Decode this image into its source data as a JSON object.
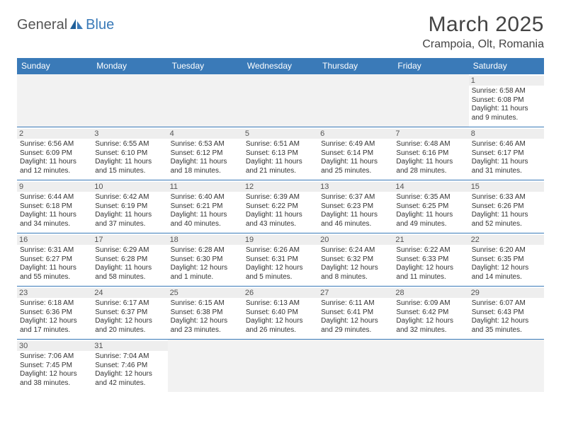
{
  "logo": {
    "text1": "General",
    "text2": "Blue"
  },
  "header": {
    "month": "March 2025",
    "location": "Crampoia, Olt, Romania"
  },
  "colors": {
    "header_bg": "#3a7ab8",
    "header_text": "#ffffff",
    "border": "#3a7ab8",
    "empty_bg": "#f2f2f2",
    "daynum_bg": "#eeeeee",
    "text": "#333333"
  },
  "day_headers": [
    "Sunday",
    "Monday",
    "Tuesday",
    "Wednesday",
    "Thursday",
    "Friday",
    "Saturday"
  ],
  "layout": {
    "first_day_index": 6,
    "days_in_month": 31
  },
  "days": {
    "1": {
      "sunrise": "6:58 AM",
      "sunset": "6:08 PM",
      "daylight": "11 hours and 9 minutes."
    },
    "2": {
      "sunrise": "6:56 AM",
      "sunset": "6:09 PM",
      "daylight": "11 hours and 12 minutes."
    },
    "3": {
      "sunrise": "6:55 AM",
      "sunset": "6:10 PM",
      "daylight": "11 hours and 15 minutes."
    },
    "4": {
      "sunrise": "6:53 AM",
      "sunset": "6:12 PM",
      "daylight": "11 hours and 18 minutes."
    },
    "5": {
      "sunrise": "6:51 AM",
      "sunset": "6:13 PM",
      "daylight": "11 hours and 21 minutes."
    },
    "6": {
      "sunrise": "6:49 AM",
      "sunset": "6:14 PM",
      "daylight": "11 hours and 25 minutes."
    },
    "7": {
      "sunrise": "6:48 AM",
      "sunset": "6:16 PM",
      "daylight": "11 hours and 28 minutes."
    },
    "8": {
      "sunrise": "6:46 AM",
      "sunset": "6:17 PM",
      "daylight": "11 hours and 31 minutes."
    },
    "9": {
      "sunrise": "6:44 AM",
      "sunset": "6:18 PM",
      "daylight": "11 hours and 34 minutes."
    },
    "10": {
      "sunrise": "6:42 AM",
      "sunset": "6:19 PM",
      "daylight": "11 hours and 37 minutes."
    },
    "11": {
      "sunrise": "6:40 AM",
      "sunset": "6:21 PM",
      "daylight": "11 hours and 40 minutes."
    },
    "12": {
      "sunrise": "6:39 AM",
      "sunset": "6:22 PM",
      "daylight": "11 hours and 43 minutes."
    },
    "13": {
      "sunrise": "6:37 AM",
      "sunset": "6:23 PM",
      "daylight": "11 hours and 46 minutes."
    },
    "14": {
      "sunrise": "6:35 AM",
      "sunset": "6:25 PM",
      "daylight": "11 hours and 49 minutes."
    },
    "15": {
      "sunrise": "6:33 AM",
      "sunset": "6:26 PM",
      "daylight": "11 hours and 52 minutes."
    },
    "16": {
      "sunrise": "6:31 AM",
      "sunset": "6:27 PM",
      "daylight": "11 hours and 55 minutes."
    },
    "17": {
      "sunrise": "6:29 AM",
      "sunset": "6:28 PM",
      "daylight": "11 hours and 58 minutes."
    },
    "18": {
      "sunrise": "6:28 AM",
      "sunset": "6:30 PM",
      "daylight": "12 hours and 1 minute."
    },
    "19": {
      "sunrise": "6:26 AM",
      "sunset": "6:31 PM",
      "daylight": "12 hours and 5 minutes."
    },
    "20": {
      "sunrise": "6:24 AM",
      "sunset": "6:32 PM",
      "daylight": "12 hours and 8 minutes."
    },
    "21": {
      "sunrise": "6:22 AM",
      "sunset": "6:33 PM",
      "daylight": "12 hours and 11 minutes."
    },
    "22": {
      "sunrise": "6:20 AM",
      "sunset": "6:35 PM",
      "daylight": "12 hours and 14 minutes."
    },
    "23": {
      "sunrise": "6:18 AM",
      "sunset": "6:36 PM",
      "daylight": "12 hours and 17 minutes."
    },
    "24": {
      "sunrise": "6:17 AM",
      "sunset": "6:37 PM",
      "daylight": "12 hours and 20 minutes."
    },
    "25": {
      "sunrise": "6:15 AM",
      "sunset": "6:38 PM",
      "daylight": "12 hours and 23 minutes."
    },
    "26": {
      "sunrise": "6:13 AM",
      "sunset": "6:40 PM",
      "daylight": "12 hours and 26 minutes."
    },
    "27": {
      "sunrise": "6:11 AM",
      "sunset": "6:41 PM",
      "daylight": "12 hours and 29 minutes."
    },
    "28": {
      "sunrise": "6:09 AM",
      "sunset": "6:42 PM",
      "daylight": "12 hours and 32 minutes."
    },
    "29": {
      "sunrise": "6:07 AM",
      "sunset": "6:43 PM",
      "daylight": "12 hours and 35 minutes."
    },
    "30": {
      "sunrise": "7:06 AM",
      "sunset": "7:45 PM",
      "daylight": "12 hours and 38 minutes."
    },
    "31": {
      "sunrise": "7:04 AM",
      "sunset": "7:46 PM",
      "daylight": "12 hours and 42 minutes."
    }
  },
  "labels": {
    "sunrise": "Sunrise:",
    "sunset": "Sunset:",
    "daylight": "Daylight:"
  }
}
